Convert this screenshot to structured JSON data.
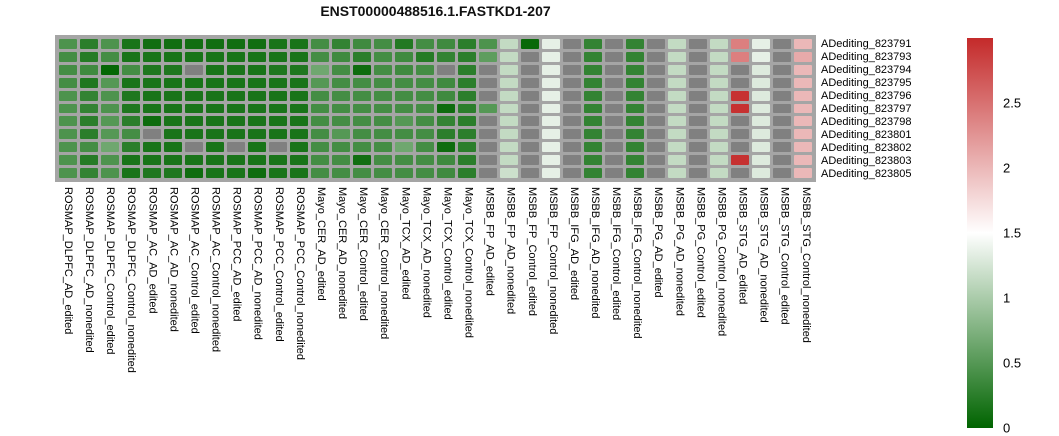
{
  "title": "ENST00000488516.1.FASTKD1-207",
  "chart_data": {
    "type": "heatmap",
    "title": "ENST00000488516.1.FASTKD1-207",
    "rows": [
      "ADediting_823791",
      "ADediting_823793",
      "ADediting_823794",
      "ADediting_823795",
      "ADediting_823796",
      "ADediting_823797",
      "ADediting_823798",
      "ADediting_823801",
      "ADediting_823802",
      "ADediting_823803",
      "ADediting_823805"
    ],
    "columns": [
      "ROSMAP_DLPFC_AD_edited",
      "ROSMAP_DLPFC_AD_nonedited",
      "ROSMAP_DLPFC_Control_edited",
      "ROSMAP_DLPFC_Control_nonedited",
      "ROSMAP_AC_AD_edited",
      "ROSMAP_AC_AD_nonedited",
      "ROSMAP_AC_Control_edited",
      "ROSMAP_AC_Control_nonedited",
      "ROSMAP_PCC_AD_edited",
      "ROSMAP_PCC_AD_nonedited",
      "ROSMAP_PCC_Control_edited",
      "ROSMAP_PCC_Control_nonedited",
      "Mayo_CER_AD_edited",
      "Mayo_CER_AD_nonedited",
      "Mayo_CER_Control_edited",
      "Mayo_CER_Control_nonedited",
      "Mayo_TCX_AD_edited",
      "Mayo_TCX_AD_nonedited",
      "Mayo_TCX_Control_edited",
      "Mayo_TCX_Control_nonedited",
      "MSBB_FP_AD_edited",
      "MSBB_FP_AD_nonedited",
      "MSBB_FP_Control_edited",
      "MSBB_FP_Control_nonedited",
      "MSBB_IFG_AD_edited",
      "MSBB_IFG_AD_nonedited",
      "MSBB_IFG_Control_edited",
      "MSBB_IFG_Control_nonedited",
      "MSBB_PG_AD_edited",
      "MSBB_PG_AD_nonedited",
      "MSBB_PG_Control_edited",
      "MSBB_PG_Control_nonedited",
      "MSBB_STG_AD_edited",
      "MSBB_STG_AD_nonedited",
      "MSBB_STG_Control_edited",
      "MSBB_STG_Control_nonedited"
    ],
    "values": [
      [
        0.45,
        0.25,
        0.45,
        0.15,
        0.1,
        0.1,
        0.1,
        0.1,
        0.1,
        0.1,
        0.15,
        0.15,
        0.4,
        0.3,
        0.37,
        0.4,
        0.2,
        0.4,
        0.37,
        0.25,
        0.45,
        1.15,
        0.05,
        1.35,
        null,
        0.3,
        null,
        0.3,
        null,
        1.15,
        null,
        1.15,
        2.4,
        1.35,
        null,
        2.0
      ],
      [
        0.4,
        0.22,
        0.4,
        0.15,
        0.15,
        0.15,
        0.15,
        0.15,
        0.15,
        0.15,
        0.15,
        0.15,
        0.4,
        0.37,
        0.25,
        0.4,
        0.37,
        0.22,
        0.3,
        0.25,
        0.55,
        1.15,
        null,
        1.35,
        null,
        0.3,
        null,
        0.3,
        null,
        1.15,
        null,
        1.15,
        2.4,
        1.35,
        null,
        2.1
      ],
      [
        0.4,
        0.37,
        0.03,
        0.4,
        0.18,
        0.18,
        null,
        0.15,
        0.15,
        0.15,
        0.18,
        0.18,
        0.65,
        0.4,
        0.08,
        0.4,
        0.37,
        0.4,
        null,
        0.25,
        null,
        1.15,
        null,
        1.35,
        null,
        0.3,
        null,
        0.3,
        null,
        1.15,
        null,
        1.15,
        null,
        1.3,
        null,
        2.0
      ],
      [
        0.4,
        0.18,
        0.5,
        0.15,
        0.15,
        0.15,
        0.15,
        0.15,
        0.15,
        0.15,
        0.15,
        0.15,
        0.5,
        0.4,
        0.4,
        0.4,
        0.4,
        0.4,
        0.37,
        0.25,
        null,
        1.15,
        null,
        1.35,
        null,
        0.3,
        null,
        0.3,
        null,
        1.15,
        null,
        1.15,
        null,
        1.3,
        null,
        2.0
      ],
      [
        0.45,
        0.3,
        0.45,
        0.18,
        0.15,
        0.15,
        0.15,
        0.15,
        0.15,
        0.15,
        0.15,
        0.15,
        0.4,
        0.4,
        0.4,
        0.4,
        0.4,
        0.4,
        0.37,
        0.25,
        null,
        1.15,
        null,
        1.35,
        null,
        0.3,
        null,
        0.3,
        null,
        1.15,
        null,
        1.15,
        2.95,
        1.3,
        null,
        2.0
      ],
      [
        0.45,
        0.3,
        0.45,
        0.18,
        0.15,
        0.15,
        0.15,
        0.15,
        0.15,
        0.15,
        0.15,
        0.15,
        0.4,
        0.4,
        0.4,
        0.4,
        0.4,
        0.4,
        0.08,
        0.25,
        0.5,
        1.15,
        null,
        1.35,
        null,
        0.3,
        null,
        0.3,
        null,
        1.15,
        null,
        1.15,
        2.95,
        1.3,
        null,
        2.0
      ],
      [
        0.45,
        0.25,
        0.5,
        0.25,
        0.08,
        0.15,
        0.15,
        0.15,
        0.15,
        0.15,
        0.15,
        0.15,
        0.4,
        0.4,
        0.4,
        0.4,
        0.5,
        0.4,
        0.3,
        0.25,
        null,
        1.15,
        null,
        1.35,
        null,
        0.3,
        null,
        0.3,
        null,
        1.15,
        null,
        1.15,
        null,
        1.3,
        null,
        2.0
      ],
      [
        0.45,
        0.25,
        0.5,
        0.4,
        null,
        0.15,
        0.15,
        0.15,
        0.15,
        0.15,
        0.15,
        0.15,
        0.4,
        0.5,
        0.4,
        0.4,
        0.4,
        0.4,
        0.25,
        0.25,
        null,
        1.15,
        null,
        1.35,
        null,
        0.3,
        null,
        0.3,
        null,
        1.15,
        null,
        1.15,
        null,
        1.3,
        null,
        2.0
      ],
      [
        0.45,
        0.4,
        0.65,
        0.25,
        0.15,
        0.15,
        null,
        0.15,
        null,
        0.15,
        null,
        0.15,
        0.4,
        0.4,
        0.4,
        0.4,
        0.65,
        0.4,
        0.08,
        0.25,
        null,
        1.15,
        null,
        1.35,
        null,
        0.3,
        null,
        0.3,
        null,
        1.15,
        null,
        1.15,
        null,
        1.3,
        null,
        2.0
      ],
      [
        0.45,
        0.22,
        0.45,
        0.15,
        0.15,
        0.15,
        0.15,
        0.15,
        0.15,
        0.15,
        0.15,
        0.15,
        0.4,
        0.4,
        0.1,
        0.4,
        0.4,
        0.4,
        0.37,
        0.25,
        null,
        1.15,
        null,
        1.35,
        null,
        0.3,
        null,
        0.3,
        null,
        1.15,
        null,
        1.15,
        2.95,
        1.3,
        null,
        2.0
      ],
      [
        0.45,
        0.3,
        0.45,
        0.15,
        0.18,
        0.18,
        0.08,
        0.15,
        0.15,
        0.08,
        0.15,
        0.15,
        0.4,
        0.4,
        0.4,
        0.4,
        0.4,
        0.4,
        0.37,
        0.25,
        null,
        1.2,
        null,
        1.35,
        null,
        0.3,
        null,
        0.3,
        null,
        1.15,
        null,
        1.15,
        null,
        1.3,
        null,
        2.0
      ]
    ],
    "colorbar": {
      "min": 0,
      "mid": 1.5,
      "max": 3,
      "tick_labels": [
        "2.5",
        "2",
        "1.5",
        "1",
        "0.5",
        "0"
      ],
      "tick_values": [
        2.5,
        2,
        1.5,
        1,
        0.5,
        0
      ],
      "low_color": "#006400",
      "mid_color": "#ffffff",
      "high_color": "#c42a2a",
      "na_color": "#808080",
      "grid_background": "#a5a5a5",
      "position": "right"
    }
  }
}
